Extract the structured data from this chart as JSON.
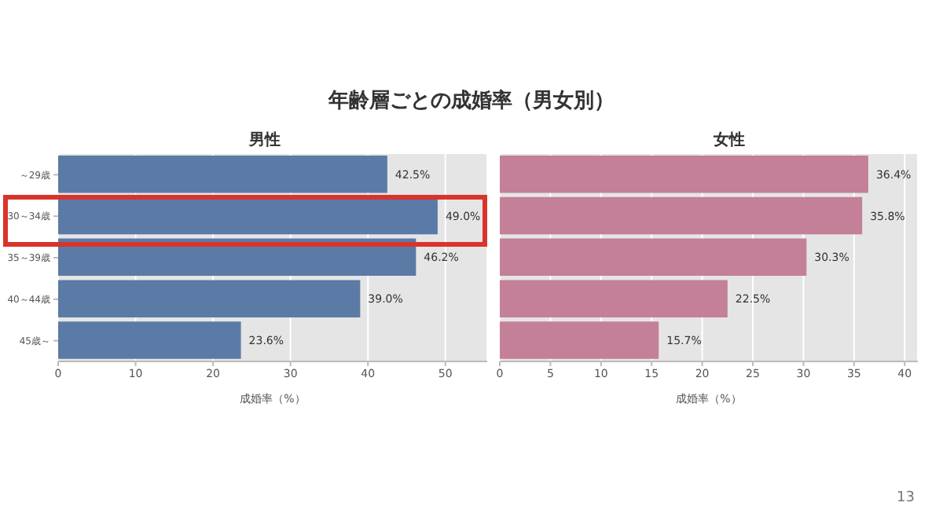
{
  "chart_data": [
    {
      "type": "bar",
      "orientation": "horizontal",
      "title": "男性",
      "xlabel": "成婚率（%）",
      "categories": [
        "～29歳",
        "30～34歳",
        "35～39歳",
        "40～44歳",
        "45歳～"
      ],
      "values": [
        42.5,
        49.0,
        46.2,
        39.0,
        23.6
      ],
      "value_labels": [
        "42.5%",
        "49.0%",
        "46.2%",
        "39.0%",
        "23.6%"
      ],
      "color": "#5b7ba6",
      "xlim": [
        0,
        55.4
      ],
      "xticks": [
        0,
        10,
        20,
        30,
        40,
        50
      ],
      "grid": "x",
      "annotations": [
        "年齢層ごとの成婚率（男女別）"
      ]
    },
    {
      "type": "bar",
      "orientation": "horizontal",
      "title": "女性",
      "xlabel": "成婚率（%）",
      "categories": [
        null,
        null,
        null,
        null,
        null
      ],
      "values": [
        36.4,
        35.8,
        30.3,
        22.5,
        15.7
      ],
      "value_labels": [
        "36.4%",
        "35.8%",
        "30.3%",
        "22.5%",
        "15.7%"
      ],
      "color": "#c47f99",
      "xlim": [
        0,
        41.3
      ],
      "xticks": [
        0,
        5,
        10,
        15,
        20,
        25,
        30,
        35,
        40
      ],
      "grid": "x",
      "tick_labels": "x",
      "annotations": [
        "13"
      ]
    }
  ]
}
